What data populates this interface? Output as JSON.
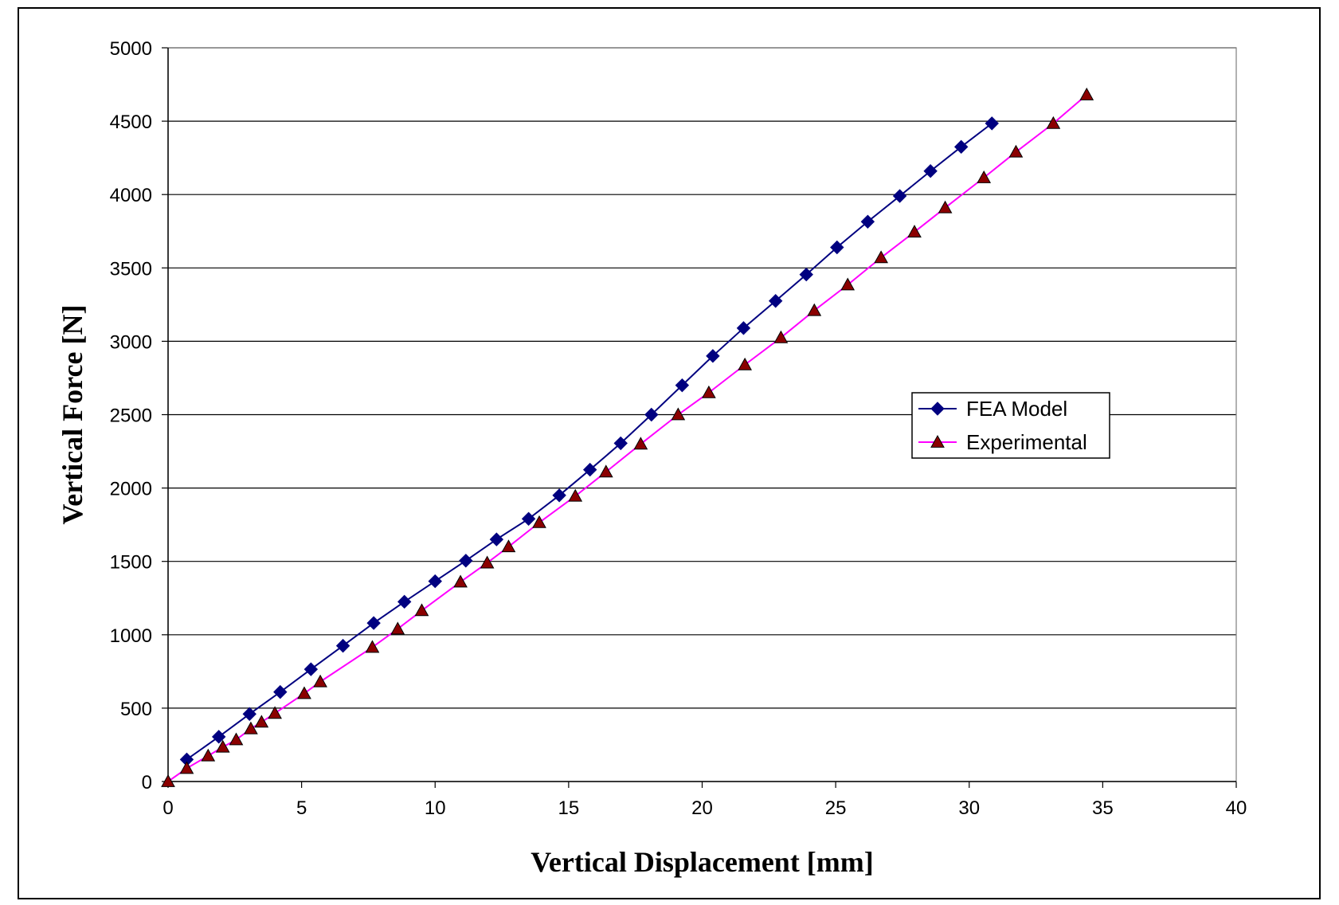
{
  "chart_data": {
    "type": "line",
    "title": "",
    "xlabel": "Vertical Displacement [mm]",
    "ylabel": "Vertical Force [N]",
    "xlim": [
      0,
      40
    ],
    "ylim": [
      0,
      5000
    ],
    "xticks": [
      "0",
      "5",
      "10",
      "15",
      "20",
      "25",
      "30",
      "35",
      "40"
    ],
    "yticks": [
      "0",
      "500",
      "1000",
      "1500",
      "2000",
      "2500",
      "3000",
      "3500",
      "4000",
      "4500",
      "5000"
    ],
    "grid": "horizontal",
    "legend_position": "right-center",
    "series": [
      {
        "name": "FEA Model",
        "color": "#000080",
        "marker": "diamond",
        "marker_color": "#000080",
        "x": [
          0.7,
          1.9,
          3.05,
          4.2,
          5.35,
          6.55,
          7.7,
          8.85,
          10.0,
          11.15,
          12.3,
          13.5,
          14.65,
          15.8,
          16.95,
          18.1,
          19.25,
          20.4,
          21.55,
          22.75,
          23.9,
          25.05,
          26.2,
          27.4,
          28.55,
          29.7,
          30.85
        ],
        "y": [
          150,
          305,
          460,
          610,
          765,
          925,
          1080,
          1225,
          1365,
          1505,
          1650,
          1790,
          1950,
          2125,
          2305,
          2500,
          2700,
          2900,
          3090,
          3275,
          3455,
          3640,
          3815,
          3990,
          4160,
          4325,
          4485
        ]
      },
      {
        "name": "Experimental",
        "color": "#ff00ff",
        "marker": "triangle",
        "marker_color": "#8b0000",
        "x": [
          0,
          0.7,
          1.5,
          2.05,
          2.55,
          3.1,
          3.5,
          4.0,
          5.1,
          5.7,
          7.65,
          8.6,
          9.5,
          10.95,
          11.95,
          12.75,
          13.9,
          15.25,
          16.4,
          17.7,
          19.1,
          20.25,
          21.6,
          22.95,
          24.2,
          25.45,
          26.7,
          27.95,
          29.1,
          30.55,
          31.75,
          33.15,
          34.4
        ],
        "y": [
          0,
          90,
          175,
          235,
          285,
          360,
          405,
          465,
          600,
          680,
          915,
          1040,
          1165,
          1360,
          1490,
          1600,
          1765,
          1945,
          2110,
          2300,
          2500,
          2650,
          2840,
          3025,
          3210,
          3385,
          3570,
          3745,
          3910,
          4115,
          4290,
          4485,
          4680
        ]
      }
    ]
  }
}
